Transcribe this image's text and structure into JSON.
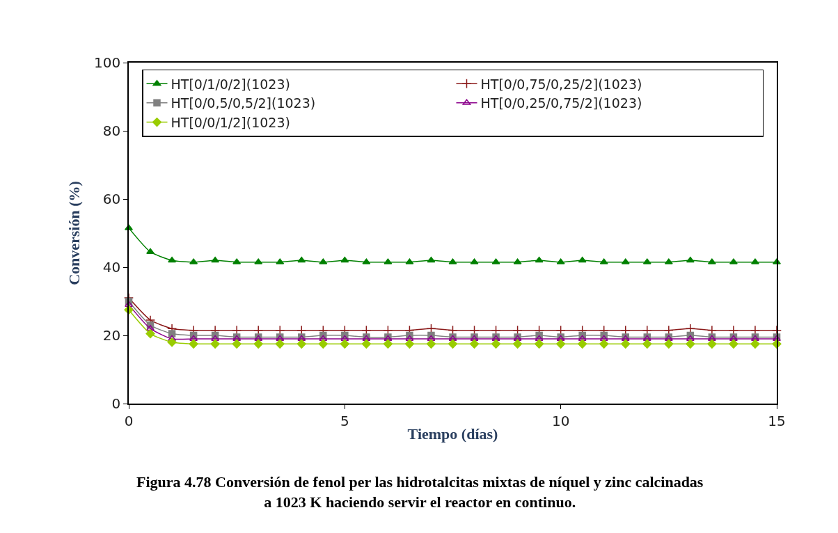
{
  "chart_data": {
    "type": "line",
    "xlabel": "Tiempo (días)",
    "ylabel": "Conversión (%)",
    "x": [
      0,
      0.5,
      1,
      1.5,
      2,
      2.5,
      3,
      3.5,
      4,
      4.5,
      5,
      5.5,
      6,
      6.5,
      7,
      7.5,
      8,
      8.5,
      9,
      9.5,
      10,
      10.5,
      11,
      11.5,
      12,
      12.5,
      13,
      13.5,
      14,
      14.5,
      15
    ],
    "series": [
      {
        "name": "HT[0/1/0/2](1023)",
        "color": "#008000",
        "marker": "triangle",
        "values": [
          51.5,
          44.5,
          42,
          41.5,
          42,
          41.5,
          41.5,
          41.5,
          42,
          41.5,
          42,
          41.5,
          41.5,
          41.5,
          42,
          41.5,
          41.5,
          41.5,
          41.5,
          42,
          41.5,
          42,
          41.5,
          41.5,
          41.5,
          41.5,
          42,
          41.5,
          41.5,
          41.5,
          41.5
        ]
      },
      {
        "name": "HT[0/0,75/0,25/2](1023)",
        "color": "#8b1a1a",
        "marker": "cross",
        "values": [
          31,
          24.5,
          22,
          21.5,
          21.5,
          21.5,
          21.5,
          21.5,
          21.5,
          21.5,
          21.5,
          21.5,
          21.5,
          21.5,
          22,
          21.5,
          21.5,
          21.5,
          21.5,
          21.5,
          21.5,
          21.5,
          21.5,
          21.5,
          21.5,
          21.5,
          22,
          21.5,
          21.5,
          21.5,
          21.5
        ]
      },
      {
        "name": "HT[0/0,5/0,5/2](1023)",
        "color": "#808080",
        "marker": "square",
        "values": [
          30,
          23,
          20.5,
          20,
          20,
          19.5,
          19.5,
          19.5,
          19.5,
          20,
          20,
          19.5,
          19.5,
          20,
          20,
          19.5,
          19.5,
          19.5,
          19.5,
          20,
          19.5,
          20,
          20,
          19.5,
          19.5,
          19.5,
          20,
          19.5,
          19.5,
          19.5,
          19.5
        ]
      },
      {
        "name": "HT[0/0,25/0,75/2](1023)",
        "color": "#8b008b",
        "marker": "triangle-open",
        "values": [
          29,
          22,
          19,
          19,
          19,
          19,
          19,
          19,
          19,
          19,
          19,
          19,
          19,
          19,
          19,
          19,
          19,
          19,
          19,
          19,
          19,
          19,
          19,
          19,
          19,
          19,
          19,
          19,
          19,
          19,
          19
        ]
      },
      {
        "name": "HT[0/0/1/2](1023)",
        "color": "#99cc00",
        "marker": "diamond",
        "values": [
          27.5,
          20.5,
          18,
          17.5,
          17.5,
          17.5,
          17.5,
          17.5,
          17.5,
          17.5,
          17.5,
          17.5,
          17.5,
          17.5,
          17.5,
          17.5,
          17.5,
          17.5,
          17.5,
          17.5,
          17.5,
          17.5,
          17.5,
          17.5,
          17.5,
          17.5,
          17.5,
          17.5,
          17.5,
          17.5,
          17.5
        ]
      }
    ],
    "xlim": [
      0,
      15
    ],
    "xticks": [
      0,
      5,
      10,
      15
    ],
    "ylim": [
      0,
      100
    ],
    "yticks": [
      0,
      20,
      40,
      60,
      80,
      100
    ],
    "legend": "top",
    "line_style": "solid",
    "annotations": [
      "Figura 4.78 Conversión de fenol per las hidrotalcitas mixtas de níquel y zinc calcinadas a 1023 K haciendo servir el reactor en continuo."
    ]
  }
}
